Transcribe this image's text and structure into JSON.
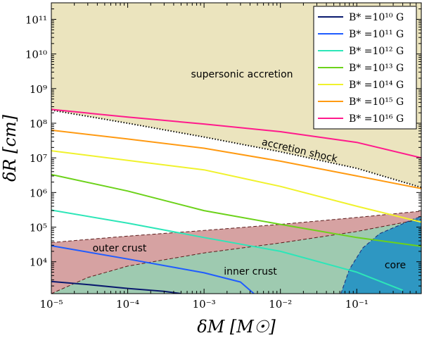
{
  "chart_data": {
    "type": "line",
    "xlabel": "δM [M☉]",
    "ylabel": "δR [cm]",
    "xscale": "log",
    "yscale": "log",
    "xlim": [
      1e-05,
      0.7
    ],
    "ylim": [
      1200,
      300000000000
    ],
    "x_ticks": [
      {
        "value": 1e-05,
        "label": "10⁻⁵"
      },
      {
        "value": 0.0001,
        "label": "10⁻⁴"
      },
      {
        "value": 0.001,
        "label": "10⁻³"
      },
      {
        "value": 0.01,
        "label": "10⁻²"
      },
      {
        "value": 0.1,
        "label": "10⁻¹"
      }
    ],
    "y_ticks": [
      {
        "value": 10000,
        "label": "10⁴"
      },
      {
        "value": 100000,
        "label": "10⁵"
      },
      {
        "value": 1000000,
        "label": "10⁶"
      },
      {
        "value": 10000000,
        "label": "10⁷"
      },
      {
        "value": 100000000,
        "label": "10⁸"
      },
      {
        "value": 1000000000,
        "label": "10⁹"
      },
      {
        "value": 10000000000,
        "label": "10¹⁰"
      },
      {
        "value": 100000000000,
        "label": "10¹¹"
      }
    ],
    "legend_position": "top-right",
    "series": [
      {
        "name": "B* =10¹⁰ G",
        "color": "#0a1a6e",
        "x": [
          1e-05,
          3e-05,
          0.0001,
          0.0003,
          0.0005
        ],
        "y": [
          2700,
          2200,
          1700,
          1400,
          1200
        ]
      },
      {
        "name": "B* =10¹¹ G",
        "color": "#1f5cff",
        "x": [
          1e-05,
          0.0001,
          0.001,
          0.003,
          0.0045
        ],
        "y": [
          29000,
          12000,
          4800,
          2600,
          1200
        ]
      },
      {
        "name": "B* =10¹² G",
        "color": "#2de6b8",
        "x": [
          1e-05,
          0.0001,
          0.001,
          0.01,
          0.1,
          0.4
        ],
        "y": [
          310000,
          130000,
          50000,
          20000,
          5000,
          1500
        ]
      },
      {
        "name": "B* =10¹³ G",
        "color": "#6cd21a",
        "x": [
          1e-05,
          0.0001,
          0.001,
          0.01,
          0.1,
          0.7
        ],
        "y": [
          3300000,
          1100000,
          300000,
          120000,
          50000,
          28000
        ]
      },
      {
        "name": "B* =10¹⁴ G",
        "color": "#f0f22c",
        "x": [
          1e-05,
          0.0001,
          0.001,
          0.01,
          0.1,
          0.7
        ],
        "y": [
          16000000,
          8500000,
          4500000,
          1500000,
          400000,
          140000
        ]
      },
      {
        "name": "B* =10¹⁵ G",
        "color": "#ff9a12",
        "x": [
          1e-05,
          0.0001,
          0.001,
          0.01,
          0.1,
          0.7
        ],
        "y": [
          63000000,
          35000000,
          19000000,
          8000000,
          3000000,
          1300000
        ]
      },
      {
        "name": "B* =10¹⁶ G",
        "color": "#ff1a8c",
        "x": [
          1e-05,
          0.0001,
          0.001,
          0.01,
          0.1,
          0.7
        ],
        "y": [
          250000000,
          150000000,
          95000000,
          57000000,
          28000000,
          10000000
        ]
      }
    ],
    "shock_line": {
      "label": "accretion shock",
      "x": [
        1e-05,
        0.0001,
        0.001,
        0.01,
        0.1,
        0.7
      ],
      "y": [
        240000000,
        100000000,
        40000000,
        15000000,
        5000000,
        1400000
      ]
    },
    "regions": [
      {
        "name": "supersonic accretion",
        "color": "#ebe4be"
      },
      {
        "name": "outer crust",
        "color": "#d6a2a2",
        "boundary": {
          "x": [
            1e-05,
            0.0001,
            0.001,
            0.01,
            0.1,
            0.7
          ],
          "y": [
            36000,
            55000,
            80000,
            120000,
            190000,
            290000
          ]
        }
      },
      {
        "name": "inner crust",
        "color": "#9ecab0",
        "boundary": {
          "x": [
            1e-05,
            3e-05,
            0.0001,
            0.001,
            0.01,
            0.1,
            0.7
          ],
          "y": [
            1200,
            3500,
            7500,
            18000,
            35000,
            75000,
            170000
          ]
        }
      },
      {
        "name": "core",
        "color": "#2e97c2",
        "boundary": {
          "x": [
            0.062,
            0.08,
            0.12,
            0.2,
            0.35,
            0.55,
            0.7
          ],
          "y": [
            1200,
            6000,
            25000,
            65000,
            110000,
            170000,
            200000
          ]
        }
      }
    ]
  }
}
